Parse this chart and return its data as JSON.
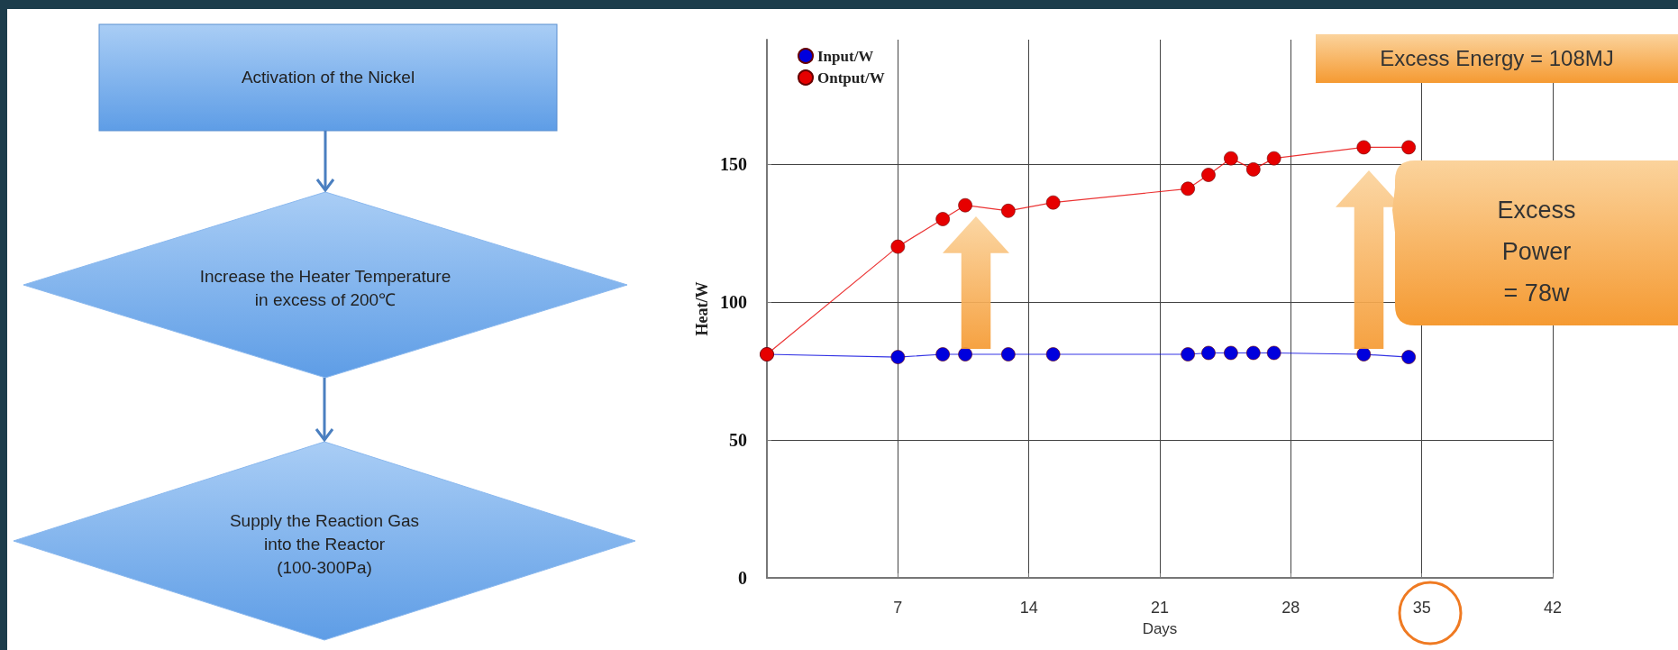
{
  "chart_data": [
    {
      "type": "other",
      "annotations": [
        "Activation of the Nickel",
        "Increase the Heater Temperature\nin excess of 200℃",
        "Supply the Reaction Gas\ninto the Reactor\n(100-300Pa)"
      ]
    },
    {
      "type": "line",
      "xlabel": "Days",
      "ylabel": "Heat/W",
      "xlim": [
        0,
        42
      ],
      "xticks": [
        7,
        14,
        21,
        28,
        35,
        42
      ],
      "ylim": [
        0,
        195
      ],
      "yticks": [
        0,
        50,
        100,
        150
      ],
      "grid": true,
      "legend": "top left",
      "marker": "circle",
      "line_style": "solid",
      "annotations": [
        "Excess Energy = 108MJ",
        "Excess\nPower\n= 78w"
      ],
      "series": [
        {
          "name": "Input/W",
          "color": "#0000dd",
          "x": [
            0,
            7,
            9.4,
            10.6,
            12.9,
            15.3,
            22.5,
            23.6,
            24.8,
            26,
            27.1,
            31.9,
            34.3
          ],
          "values": [
            81,
            80,
            81,
            81,
            81,
            81,
            81,
            81.5,
            81.5,
            81.5,
            81.5,
            81,
            80
          ]
        },
        {
          "name": "Ontput/W",
          "color": "#e60000",
          "x": [
            0,
            7,
            9.4,
            10.6,
            12.9,
            15.3,
            22.5,
            23.6,
            24.8,
            26,
            27.1,
            31.9,
            34.3
          ],
          "values": [
            81,
            120,
            130,
            135,
            133,
            136,
            141,
            146,
            152,
            148,
            152,
            156,
            156
          ]
        }
      ]
    }
  ]
}
